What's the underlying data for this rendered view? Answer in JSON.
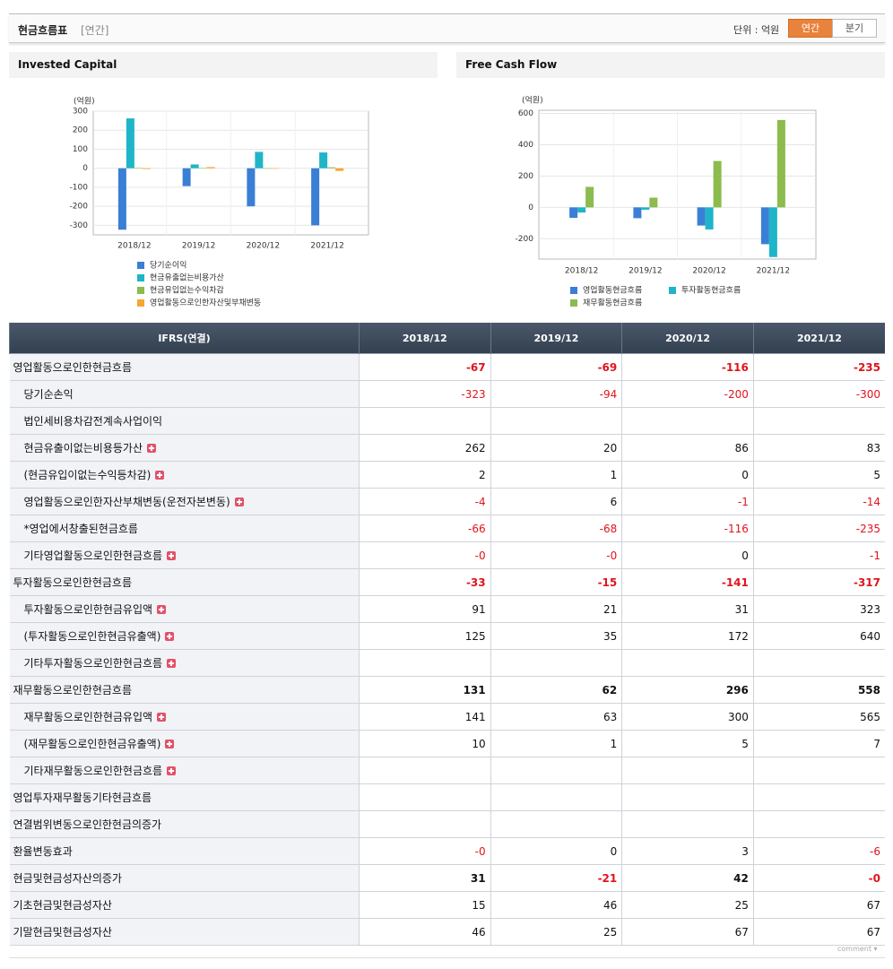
{
  "header": {
    "title": "현금흐름표",
    "period": "[연간]",
    "unit_label": "단위 : 억원",
    "tabs": [
      "연간",
      "분기"
    ]
  },
  "charts": [
    {
      "type": "bar",
      "title": "Invested Capital",
      "ylabel": "(억원)",
      "categories": [
        "2018/12",
        "2019/12",
        "2020/12",
        "2021/12"
      ],
      "series": [
        {
          "name": "당기순이익",
          "color": "#3a7fd5",
          "values": [
            -323,
            -94,
            -200,
            -300
          ]
        },
        {
          "name": "현금유출없는비용가산",
          "color": "#1fb5c8",
          "values": [
            262,
            20,
            86,
            83
          ]
        },
        {
          "name": "현금유입없는수익차감",
          "color": "#8cbb4e",
          "values": [
            2,
            1,
            0,
            5
          ]
        },
        {
          "name": "영업활동으로인한자산및부채변동",
          "color": "#f5a630",
          "values": [
            -4,
            6,
            -1,
            -14
          ]
        }
      ],
      "ylim": [
        -350,
        300
      ],
      "yticks": [
        -300,
        -200,
        -100,
        0,
        100,
        200,
        300
      ],
      "grid": true
    },
    {
      "type": "bar",
      "title": "Free Cash Flow",
      "ylabel": "(억원)",
      "categories": [
        "2018/12",
        "2019/12",
        "2020/12",
        "2021/12"
      ],
      "series": [
        {
          "name": "영업활동현금흐름",
          "color": "#3a7fd5",
          "values": [
            -67,
            -69,
            -116,
            -235
          ]
        },
        {
          "name": "투자활동현금흐름",
          "color": "#1fb5c8",
          "values": [
            -33,
            -15,
            -141,
            -317
          ]
        },
        {
          "name": "재무활동현금흐름",
          "color": "#8cbb4e",
          "values": [
            131,
            62,
            296,
            558
          ]
        }
      ],
      "ylim": [
        -330,
        620
      ],
      "yticks": [
        -200,
        0,
        200,
        400,
        600
      ],
      "grid": true
    }
  ],
  "table": {
    "columns": [
      "IFRS(연결)",
      "2018/12",
      "2019/12",
      "2020/12",
      "2021/12"
    ],
    "rows": [
      {
        "label": "영업활동으로인한현금흐름",
        "bold": true,
        "values": [
          "-67",
          "-69",
          "-116",
          "-235"
        ]
      },
      {
        "label": "당기순손익",
        "indent": true,
        "values": [
          "-323",
          "-94",
          "-200",
          "-300"
        ]
      },
      {
        "label": "법인세비용차감전계속사업이익",
        "indent": true,
        "values": [
          null,
          null,
          null,
          null
        ]
      },
      {
        "label": "현금유출이없는비용등가산",
        "indent": true,
        "expandable": true,
        "values": [
          "262",
          "20",
          "86",
          "83"
        ]
      },
      {
        "label": "(현금유입이없는수익등차감)",
        "indent": true,
        "expandable": true,
        "values": [
          "2",
          "1",
          "0",
          "5"
        ]
      },
      {
        "label": "영업활동으로인한자산부채변동(운전자본변동)",
        "indent": true,
        "expandable": true,
        "values": [
          "-4",
          "6",
          "-1",
          "-14"
        ]
      },
      {
        "label": "*영업에서창출된현금흐름",
        "indent": true,
        "values": [
          "-66",
          "-68",
          "-116",
          "-235"
        ]
      },
      {
        "label": "기타영업활동으로인한현금흐름",
        "indent": true,
        "expandable": true,
        "values": [
          "-0",
          "-0",
          "0",
          "-1"
        ]
      },
      {
        "label": "투자활동으로인한현금흐름",
        "bold": true,
        "values": [
          "-33",
          "-15",
          "-141",
          "-317"
        ]
      },
      {
        "label": "투자활동으로인한현금유입액",
        "indent": true,
        "expandable": true,
        "values": [
          "91",
          "21",
          "31",
          "323"
        ]
      },
      {
        "label": "(투자활동으로인한현금유출액)",
        "indent": true,
        "expandable": true,
        "values": [
          "125",
          "35",
          "172",
          "640"
        ]
      },
      {
        "label": "기타투자활동으로인한현금흐름",
        "indent": true,
        "expandable": true,
        "values": [
          null,
          null,
          null,
          null
        ]
      },
      {
        "label": "재무활동으로인한현금흐름",
        "bold": true,
        "values": [
          "131",
          "62",
          "296",
          "558"
        ]
      },
      {
        "label": "재무활동으로인한현금유입액",
        "indent": true,
        "expandable": true,
        "values": [
          "141",
          "63",
          "300",
          "565"
        ]
      },
      {
        "label": "(재무활동으로인한현금유출액)",
        "indent": true,
        "expandable": true,
        "values": [
          "10",
          "1",
          "5",
          "7"
        ]
      },
      {
        "label": "기타재무활동으로인한현금흐름",
        "indent": true,
        "expandable": true,
        "values": [
          null,
          null,
          null,
          null
        ]
      },
      {
        "label": "영업투자재무활동기타현금흐름",
        "values": [
          null,
          null,
          null,
          null
        ]
      },
      {
        "label": "연결범위변동으로인한현금의증가",
        "values": [
          null,
          null,
          null,
          null
        ]
      },
      {
        "label": "환율변동효과",
        "values": [
          "-0",
          "0",
          "3",
          "-6"
        ]
      },
      {
        "label": "현금및현금성자산의증가",
        "bold": true,
        "values": [
          "31",
          "-21",
          "42",
          "-0"
        ]
      },
      {
        "label": "기초현금및현금성자산",
        "values": [
          "15",
          "46",
          "25",
          "67"
        ]
      },
      {
        "label": "기말현금및현금성자산",
        "values": [
          "46",
          "25",
          "67",
          "67"
        ]
      }
    ]
  },
  "footer": "comment"
}
